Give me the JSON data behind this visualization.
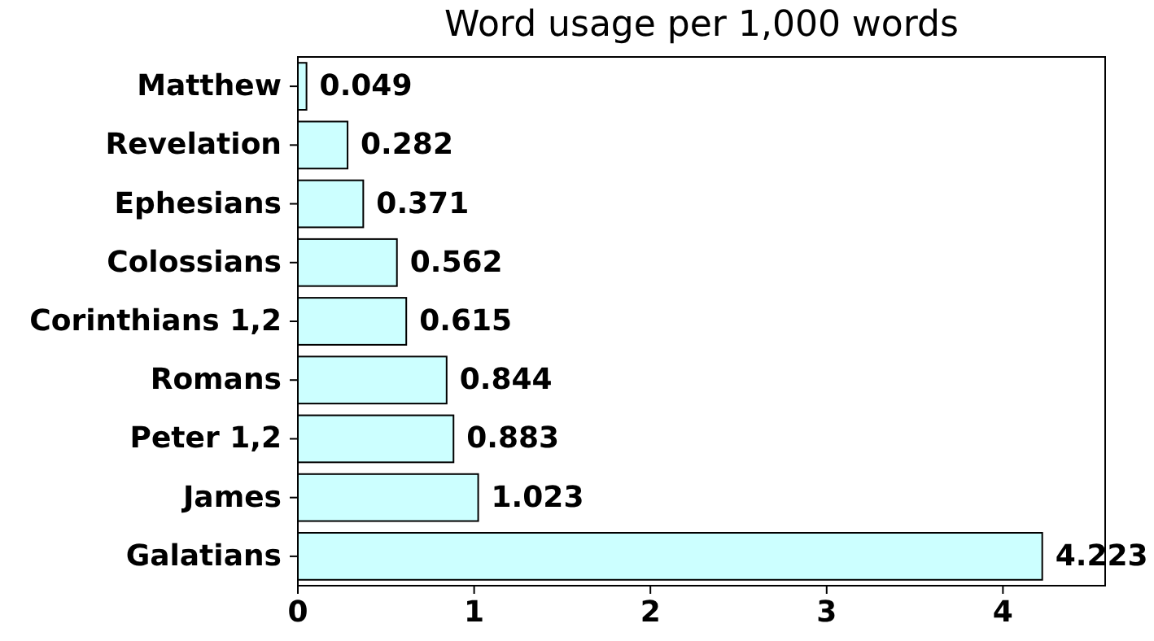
{
  "chart_data": {
    "type": "bar",
    "orientation": "horizontal",
    "title": "Word usage per 1,000 words",
    "categories": [
      "Matthew",
      "Revelation",
      "Ephesians",
      "Colossians",
      "Corinthians 1,2",
      "Romans",
      "Peter 1,2",
      "James",
      "Galatians"
    ],
    "values": [
      0.049,
      0.282,
      0.371,
      0.562,
      0.615,
      0.844,
      0.883,
      1.023,
      4.223
    ],
    "color": "#ccffff",
    "xlim": [
      0,
      4.58
    ],
    "xticks": [
      0,
      1,
      2,
      3,
      4
    ],
    "data_labels": true
  }
}
